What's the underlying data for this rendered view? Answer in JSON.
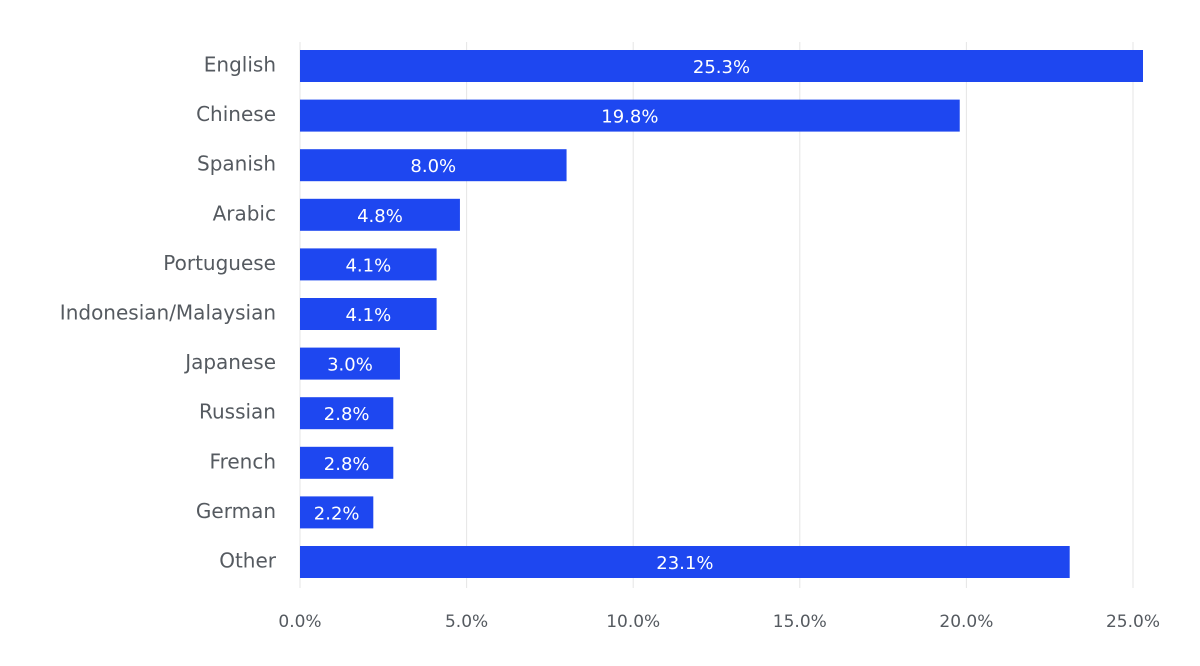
{
  "chart_data": {
    "type": "bar",
    "orientation": "horizontal",
    "title": "",
    "xlabel": "",
    "ylabel": "",
    "categories": [
      "English",
      "Chinese",
      "Spanish",
      "Arabic",
      "Portuguese",
      "Indonesian/Malaysian",
      "Japanese",
      "Russian",
      "French",
      "German",
      "Other"
    ],
    "values": [
      25.3,
      19.8,
      8.0,
      4.8,
      4.1,
      4.1,
      3.0,
      2.8,
      2.8,
      2.2,
      23.1
    ],
    "value_labels": [
      "25.3%",
      "19.8%",
      "8.0%",
      "4.8%",
      "4.1%",
      "4.1%",
      "3.0%",
      "2.8%",
      "2.8%",
      "2.2%",
      "23.1%"
    ],
    "xlim": [
      0,
      25
    ],
    "x_ticks": [
      0,
      5,
      10,
      15,
      20,
      25
    ],
    "x_tick_labels": [
      "0.0%",
      "5.0%",
      "10.0%",
      "15.0%",
      "20.0%",
      "25.0%"
    ],
    "grid": "vertical",
    "legend": "none",
    "colors": {
      "bar": "#1e47f0",
      "bar_label": "#ffffff",
      "axis_text": "#555a60",
      "grid": "#e5e5e5"
    }
  }
}
